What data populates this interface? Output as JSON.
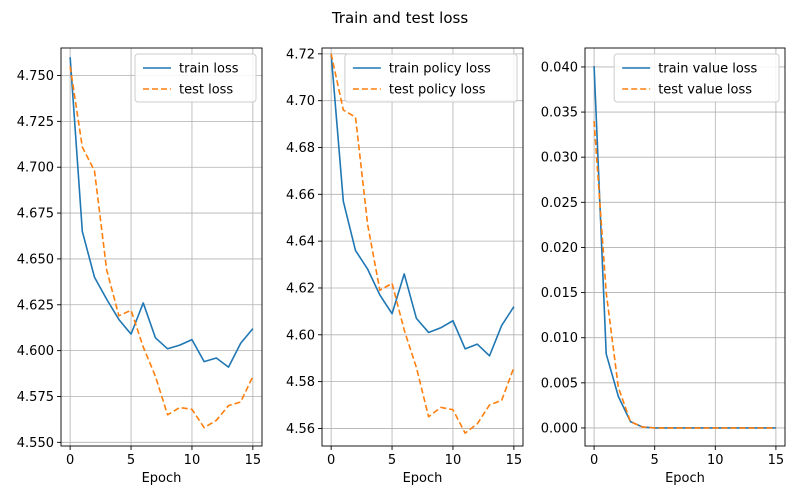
{
  "figure_title": "Train and test loss",
  "colors": {
    "train": "#1f77b4",
    "test": "#ff7f0e",
    "grid": "#b0b0b0"
  },
  "chart_data": [
    {
      "type": "line",
      "xlabel": "Epoch",
      "ylabel": "",
      "xlim": [
        -0.75,
        15.75
      ],
      "ylim": [
        4.548,
        4.765
      ],
      "xticks": [
        0,
        5,
        10,
        15
      ],
      "xtick_labels": [
        "0",
        "5",
        "10",
        "15"
      ],
      "yticks": [
        4.55,
        4.575,
        4.6,
        4.625,
        4.65,
        4.675,
        4.7,
        4.725,
        4.75
      ],
      "ytick_labels": [
        "4.550",
        "4.575",
        "4.600",
        "4.625",
        "4.650",
        "4.675",
        "4.700",
        "4.725",
        "4.750"
      ],
      "grid": true,
      "legend_position": "top-right",
      "x": [
        0,
        1,
        2,
        3,
        4,
        5,
        6,
        7,
        8,
        9,
        10,
        11,
        12,
        13,
        14,
        15
      ],
      "series": [
        {
          "name": "train loss",
          "style": "solid",
          "values": [
            4.76,
            4.665,
            4.64,
            4.628,
            4.617,
            4.609,
            4.626,
            4.607,
            4.601,
            4.603,
            4.606,
            4.594,
            4.596,
            4.591,
            4.604,
            4.612
          ]
        },
        {
          "name": "test loss",
          "style": "dashed",
          "values": [
            4.755,
            4.711,
            4.698,
            4.644,
            4.619,
            4.622,
            4.602,
            4.586,
            4.565,
            4.569,
            4.568,
            4.558,
            4.562,
            4.57,
            4.572,
            4.586
          ]
        }
      ]
    },
    {
      "type": "line",
      "xlabel": "Epoch",
      "ylabel": "",
      "xlim": [
        -0.75,
        15.75
      ],
      "ylim": [
        4.5525,
        4.7225
      ],
      "xticks": [
        0,
        5,
        10,
        15
      ],
      "xtick_labels": [
        "0",
        "5",
        "10",
        "15"
      ],
      "yticks": [
        4.56,
        4.58,
        4.6,
        4.62,
        4.64,
        4.66,
        4.68,
        4.7,
        4.72
      ],
      "ytick_labels": [
        "4.56",
        "4.58",
        "4.60",
        "4.62",
        "4.64",
        "4.66",
        "4.68",
        "4.70",
        "4.72"
      ],
      "grid": true,
      "legend_position": "top-right",
      "x": [
        0,
        1,
        2,
        3,
        4,
        5,
        6,
        7,
        8,
        9,
        10,
        11,
        12,
        13,
        14,
        15
      ],
      "series": [
        {
          "name": "train policy loss",
          "style": "solid",
          "values": [
            4.72,
            4.657,
            4.636,
            4.628,
            4.617,
            4.609,
            4.626,
            4.607,
            4.601,
            4.603,
            4.606,
            4.594,
            4.596,
            4.591,
            4.604,
            4.612
          ]
        },
        {
          "name": "test policy loss",
          "style": "dashed",
          "values": [
            4.72,
            4.696,
            4.693,
            4.647,
            4.619,
            4.622,
            4.602,
            4.586,
            4.565,
            4.569,
            4.568,
            4.558,
            4.562,
            4.57,
            4.572,
            4.586
          ]
        }
      ]
    },
    {
      "type": "line",
      "xlabel": "Epoch",
      "ylabel": "",
      "xlim": [
        -0.75,
        15.75
      ],
      "ylim": [
        -0.002,
        0.0421
      ],
      "xticks": [
        0,
        5,
        10,
        15
      ],
      "xtick_labels": [
        "0",
        "5",
        "10",
        "15"
      ],
      "yticks": [
        0,
        0.005,
        0.01,
        0.015,
        0.02,
        0.025,
        0.03,
        0.035,
        0.04
      ],
      "ytick_labels": [
        "0.000",
        "0.005",
        "0.010",
        "0.015",
        "0.020",
        "0.025",
        "0.030",
        "0.035",
        "0.040"
      ],
      "grid": true,
      "legend_position": "top-right",
      "x": [
        0,
        1,
        2,
        3,
        4,
        5,
        6,
        7,
        8,
        9,
        10,
        11,
        12,
        13,
        14,
        15
      ],
      "series": [
        {
          "name": "train value loss",
          "style": "solid",
          "values": [
            0.0401,
            0.0082,
            0.0035,
            0.0007,
            0.0001,
            0.0,
            0.0,
            0.0,
            0.0,
            0.0,
            0.0,
            0.0,
            0.0,
            0.0,
            0.0,
            0.0
          ]
        },
        {
          "name": "test value loss",
          "style": "dashed",
          "values": [
            0.034,
            0.015,
            0.0045,
            0.0007,
            0.0001,
            0.0,
            0.0,
            0.0,
            0.0,
            0.0,
            0.0,
            0.0,
            0.0,
            0.0,
            0.0,
            0.0
          ]
        }
      ]
    }
  ]
}
